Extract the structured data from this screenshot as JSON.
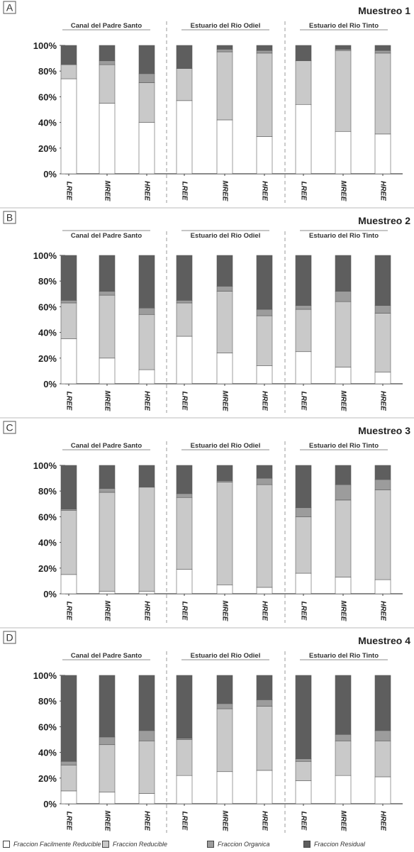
{
  "colors": {
    "fraccion_facilmente_reducible": "#ffffff",
    "fraccion_reducible": "#c9c9c9",
    "fraccion_organica": "#9c9c9c",
    "fraccion_residual": "#5e5e5e",
    "axis": "#444444",
    "text": "#222222"
  },
  "legend": [
    {
      "label": "Fraccion Facilmente Reducible",
      "color": "#ffffff"
    },
    {
      "label": "Fraccion Reducible",
      "color": "#c9c9c9"
    },
    {
      "label": "Fraccion Organica",
      "color": "#9c9c9c"
    },
    {
      "label": "Fraccion Residual",
      "color": "#5e5e5e"
    }
  ],
  "chart_data": [
    {
      "type": "bar",
      "stacked": true,
      "panel_letter": "A",
      "title": "Muestreo 1",
      "groups": [
        "Canal del Padre Santo",
        "Estuario del Rio Odiel",
        "Estuario del Rio Tinto"
      ],
      "categories": [
        "LREE",
        "MREE",
        "HREE",
        "LREE",
        "MREE",
        "HREE",
        "LREE",
        "MREE",
        "HREE"
      ],
      "yticks": [
        "0%",
        "20%",
        "40%",
        "60%",
        "80%",
        "100%"
      ],
      "ylim": [
        0,
        100
      ],
      "series": [
        {
          "name": "Fraccion Facilmente Reducible",
          "values": [
            74,
            55,
            40,
            57,
            42,
            29,
            54,
            33,
            31
          ]
        },
        {
          "name": "Fraccion Reducible",
          "values": [
            11,
            30,
            31,
            25,
            53,
            65,
            34,
            63,
            63
          ]
        },
        {
          "name": "Fraccion Organica",
          "values": [
            0,
            3,
            7,
            0,
            2,
            2,
            0,
            1,
            2
          ]
        },
        {
          "name": "Fraccion Residual",
          "values": [
            15,
            12,
            22,
            18,
            3,
            4,
            12,
            3,
            4
          ]
        }
      ]
    },
    {
      "type": "bar",
      "stacked": true,
      "panel_letter": "B",
      "title": "Muestreo 2",
      "groups": [
        "Canal del Padre Santo",
        "Estuario del Rio Odiel",
        "Estuario del Rio Tinto"
      ],
      "categories": [
        "LREE",
        "MREE",
        "HREE",
        "LREE",
        "MREE",
        "HREE",
        "LREE",
        "MREE",
        "HREE"
      ],
      "yticks": [
        "0%",
        "20%",
        "40%",
        "60%",
        "80%",
        "100%"
      ],
      "ylim": [
        0,
        100
      ],
      "series": [
        {
          "name": "Fraccion Facilmente Reducible",
          "values": [
            35,
            20,
            11,
            37,
            24,
            14,
            25,
            13,
            9
          ]
        },
        {
          "name": "Fraccion Reducible",
          "values": [
            28,
            49,
            43,
            26,
            48,
            39,
            33,
            51,
            46
          ]
        },
        {
          "name": "Fraccion Organica",
          "values": [
            2,
            3,
            5,
            2,
            4,
            5,
            3,
            8,
            6
          ]
        },
        {
          "name": "Fraccion Residual",
          "values": [
            35,
            28,
            41,
            35,
            24,
            42,
            39,
            28,
            39
          ]
        }
      ]
    },
    {
      "type": "bar",
      "stacked": true,
      "panel_letter": "C",
      "title": "Muestreo 3",
      "groups": [
        "Canal del Padre Santo",
        "Estuario del Rio Odiel",
        "Estuario del Rio Tinto"
      ],
      "categories": [
        "LREE",
        "MREE",
        "HREE",
        "LREE",
        "MREE",
        "HREE",
        "LREE",
        "MREE",
        "HREE"
      ],
      "yticks": [
        "0%",
        "20%",
        "40%",
        "60%",
        "80%",
        "100%"
      ],
      "ylim": [
        0,
        100
      ],
      "series": [
        {
          "name": "Fraccion Facilmente Reducible",
          "values": [
            15,
            2,
            2,
            19,
            7,
            5,
            16,
            13,
            11
          ]
        },
        {
          "name": "Fraccion Reducible",
          "values": [
            50,
            77,
            81,
            56,
            80,
            80,
            44,
            60,
            70
          ]
        },
        {
          "name": "Fraccion Organica",
          "values": [
            1,
            3,
            0,
            3,
            1,
            5,
            7,
            12,
            8
          ]
        },
        {
          "name": "Fraccion Residual",
          "values": [
            34,
            18,
            17,
            22,
            12,
            10,
            33,
            15,
            11
          ]
        }
      ]
    },
    {
      "type": "bar",
      "stacked": true,
      "panel_letter": "D",
      "title": "Muestreo 4",
      "groups": [
        "Canal del Padre Santo",
        "Estuario del Rio Odiel",
        "Estuario del Rio Tinto"
      ],
      "categories": [
        "LREE",
        "MREE",
        "HREE",
        "LREE",
        "MREE",
        "HREE",
        "LREE",
        "MREE",
        "HREE"
      ],
      "yticks": [
        "0%",
        "20%",
        "40%",
        "60%",
        "80%",
        "100%"
      ],
      "ylim": [
        0,
        100
      ],
      "series": [
        {
          "name": "Fraccion Facilmente Reducible",
          "values": [
            10,
            9,
            8,
            22,
            25,
            26,
            18,
            22,
            21
          ]
        },
        {
          "name": "Fraccion Reducible",
          "values": [
            20,
            37,
            41,
            28,
            49,
            50,
            15,
            27,
            28
          ]
        },
        {
          "name": "Fraccion Organica",
          "values": [
            3,
            6,
            8,
            1,
            4,
            5,
            2,
            5,
            8
          ]
        },
        {
          "name": "Fraccion Residual",
          "values": [
            67,
            48,
            43,
            49,
            22,
            19,
            65,
            46,
            43
          ]
        }
      ]
    }
  ]
}
